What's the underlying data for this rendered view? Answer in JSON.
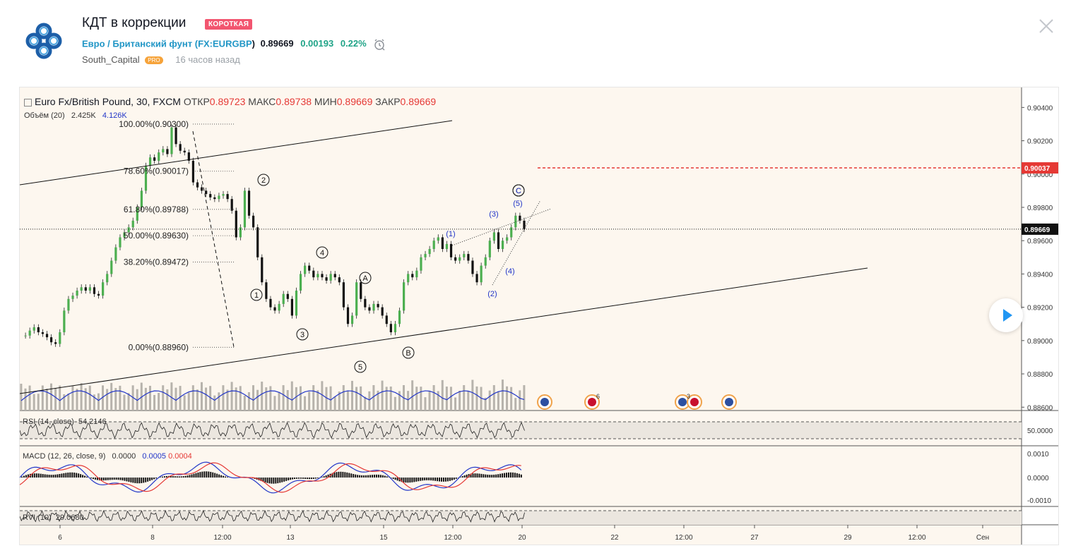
{
  "idea": {
    "title": "КДТ в коррекции",
    "badge": "КОРОТКАЯ",
    "symbol_name": "Евро / Британский фунт",
    "symbol_ticker": "FX:EURGBP",
    "price": "0.89669",
    "change": "0.00193",
    "change_pct": "0.22%",
    "author": "South_Capital",
    "author_badge": "PRO",
    "published": "16 часов назад"
  },
  "colors": {
    "short_badge": "#f2556f",
    "symbol_link": "#2196c6",
    "positive": "#1fa387",
    "ohlc_values": "#e53935",
    "volume_ma": "#2135c8",
    "target_line": "#e53935"
  },
  "chart": {
    "legend": {
      "symbol": "Euro Fx/British Pound, 30, FXCM",
      "open_label": "ОТКР",
      "open": "0.89723",
      "high_label": "МАКС",
      "high": "0.89738",
      "low_label": "МИН",
      "low": "0.89669",
      "close_label": "ЗАКР",
      "close": "0.89669"
    },
    "volume": {
      "label": "Объём (20)",
      "value": "2.425K",
      "ma": "4.126K"
    },
    "rsi": {
      "label": "RSI (14, close)",
      "value": "54.2146"
    },
    "macd": {
      "label": "MACD (12, 26, close, 9)",
      "v1": "0.0000",
      "v2": "0.0005",
      "v3": "0.0004"
    },
    "rvi": {
      "label": "RVI (10)",
      "value": "29.0680"
    }
  },
  "chart_data": {
    "type": "line",
    "price_axis_ticks": [
      "0.90400",
      "0.90200",
      "0.90000",
      "0.89800",
      "0.89600",
      "0.89400",
      "0.89200",
      "0.89000",
      "0.88800",
      "0.88600"
    ],
    "price_range": [
      0.8858,
      0.9052
    ],
    "rsi_ticks": [
      "50.0000"
    ],
    "macd_ticks": [
      "0.0010",
      "0.0000",
      "-0.0010"
    ],
    "current_price_label": "0.89669",
    "target_price_label": "0.90037",
    "current_price": 0.89669,
    "target_price": 0.90037,
    "time_labels": [
      "6",
      "8",
      "12:00",
      "13",
      "15",
      "12:00",
      "20",
      "22",
      "12:00",
      "27",
      "29",
      "12:00",
      "Сен"
    ],
    "fib_levels": [
      {
        "label": "100.00%(0.90300)",
        "price": 0.903
      },
      {
        "label": "78.60%(0.90017)",
        "price": 0.90017
      },
      {
        "label": "61.80%(0.89788)",
        "price": 0.89788
      },
      {
        "label": "50.00%(0.89630)",
        "price": 0.8963
      },
      {
        "label": "38.20%(0.89472)",
        "price": 0.89472
      },
      {
        "label": "0.00%(0.88960)",
        "price": 0.8896
      }
    ],
    "wave_labels": [
      "1",
      "2",
      "3",
      "4",
      "5",
      "A",
      "B",
      "C",
      "(1)",
      "(2)",
      "(3)",
      "(4)",
      "(5)",
      "(C)"
    ],
    "event_badges": [
      "6",
      "3"
    ],
    "close_path": [
      0.8903,
      0.8903,
      0.8906,
      0.8908,
      0.8905,
      0.8904,
      0.8902,
      0.8899,
      0.8898,
      0.8905,
      0.8918,
      0.8925,
      0.8927,
      0.893,
      0.8932,
      0.893,
      0.8932,
      0.8928,
      0.8927,
      0.8935,
      0.894,
      0.8948,
      0.8956,
      0.8962,
      0.8965,
      0.8968,
      0.8972,
      0.898,
      0.899,
      0.9005,
      0.901,
      0.9008,
      0.9013,
      0.9015,
      0.9012,
      0.9028,
      0.9018,
      0.9014,
      0.9013,
      0.9008,
      0.8995,
      0.8992,
      0.899,
      0.8988,
      0.8986,
      0.8985,
      0.8987,
      0.8988,
      0.8985,
      0.8978,
      0.8962,
      0.8968,
      0.899,
      0.8975,
      0.8968,
      0.895,
      0.8935,
      0.8925,
      0.892,
      0.8918,
      0.8922,
      0.8928,
      0.8925,
      0.8915,
      0.893,
      0.894,
      0.8945,
      0.8942,
      0.8938,
      0.894,
      0.8938,
      0.8936,
      0.894,
      0.8938,
      0.8935,
      0.892,
      0.891,
      0.8915,
      0.8935,
      0.8925,
      0.892,
      0.8918,
      0.8922,
      0.892,
      0.8915,
      0.891,
      0.8905,
      0.891,
      0.8918,
      0.8935,
      0.894,
      0.8938,
      0.8942,
      0.895,
      0.8952,
      0.8955,
      0.896,
      0.8962,
      0.8955,
      0.8958,
      0.895,
      0.8948,
      0.895,
      0.8952,
      0.8948,
      0.894,
      0.8935,
      0.8945,
      0.895,
      0.896,
      0.8965,
      0.8955,
      0.896,
      0.8962,
      0.8968,
      0.8975,
      0.8972,
      0.8967
    ]
  }
}
